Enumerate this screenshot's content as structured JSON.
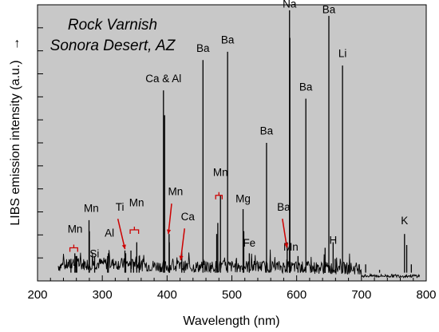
{
  "chart_data": {
    "type": "line",
    "title_lines": [
      "Rock Varnish",
      "Sonora Desert, AZ"
    ],
    "xlabel": "Wavelength (nm)",
    "ylabel": "LIBS emission intensity (a.u.)",
    "ylabel_arrow": "→",
    "xlim": [
      200,
      800
    ],
    "ylim": [
      0,
      100
    ],
    "xticks": [
      200,
      300,
      400,
      500,
      600,
      700,
      800
    ],
    "y_tick_labels": "none",
    "grid": false,
    "background": "#c8c8c8",
    "line_color": "#000000",
    "annotation_color": "#cc0000",
    "series": [
      {
        "peaks": [
          {
            "x": 394.4,
            "y": 69
          },
          {
            "x": 396.2,
            "y": 60
          },
          {
            "x": 455.4,
            "y": 80
          },
          {
            "x": 493.4,
            "y": 83
          },
          {
            "x": 553.5,
            "y": 50
          },
          {
            "x": 589.0,
            "y": 98
          },
          {
            "x": 589.6,
            "y": 88
          },
          {
            "x": 614.2,
            "y": 66
          },
          {
            "x": 649.7,
            "y": 96
          },
          {
            "x": 670.8,
            "y": 78
          },
          {
            "x": 766.5,
            "y": 17
          },
          {
            "x": 769.9,
            "y": 13
          },
          {
            "x": 279.5,
            "y": 22
          },
          {
            "x": 280.1,
            "y": 18
          },
          {
            "x": 257.6,
            "y": 10
          },
          {
            "x": 259.4,
            "y": 9
          },
          {
            "x": 260.6,
            "y": 9
          },
          {
            "x": 251.6,
            "y": 8
          },
          {
            "x": 288.2,
            "y": 9
          },
          {
            "x": 308.2,
            "y": 9
          },
          {
            "x": 309.3,
            "y": 10
          },
          {
            "x": 334.9,
            "y": 11
          },
          {
            "x": 336.1,
            "y": 10
          },
          {
            "x": 344.2,
            "y": 11
          },
          {
            "x": 348.3,
            "y": 7
          },
          {
            "x": 353.2,
            "y": 14
          },
          {
            "x": 356.9,
            "y": 9
          },
          {
            "x": 403.1,
            "y": 17
          },
          {
            "x": 403.5,
            "y": 14
          },
          {
            "x": 422.7,
            "y": 11
          },
          {
            "x": 476.6,
            "y": 17
          },
          {
            "x": 478.3,
            "y": 21
          },
          {
            "x": 482.4,
            "y": 31
          },
          {
            "x": 517.3,
            "y": 26
          },
          {
            "x": 518.4,
            "y": 18
          },
          {
            "x": 526.9,
            "y": 10
          },
          {
            "x": 585.4,
            "y": 14
          },
          {
            "x": 602.1,
            "y": 9
          },
          {
            "x": 656.3,
            "y": 14
          },
          {
            "x": 643.9,
            "y": 12
          },
          {
            "x": 659.5,
            "y": 8
          },
          {
            "x": 706.5,
            "y": 6
          },
          {
            "x": 728.0,
            "y": 4
          },
          {
            "x": 740.0,
            "y": 3
          },
          {
            "x": 777.0,
            "y": 6
          }
        ]
      }
    ],
    "annotations": [
      {
        "text": "Na",
        "x": 589,
        "y": 99
      },
      {
        "text": "Ba",
        "x": 649.7,
        "y": 97
      },
      {
        "text": "Ba",
        "x": 493.4,
        "y": 86
      },
      {
        "text": "Ba",
        "x": 455.4,
        "y": 83
      },
      {
        "text": "Li",
        "x": 670.8,
        "y": 81
      },
      {
        "text": "Ca & Al",
        "x": 394.4,
        "y": 72
      },
      {
        "text": "Ba",
        "x": 614.2,
        "y": 69
      },
      {
        "text": "Ba",
        "x": 553.5,
        "y": 53
      },
      {
        "text": "Mn",
        "x": 482.4,
        "y": 38
      },
      {
        "text": "Mg",
        "x": 517.3,
        "y": 28.5
      },
      {
        "text": "Mn",
        "x": 413,
        "y": 31
      },
      {
        "text": "Ca",
        "x": 432,
        "y": 22
      },
      {
        "text": "Fe",
        "x": 526.9,
        "y": 12.5
      },
      {
        "text": "Ba",
        "x": 580,
        "y": 25.5
      },
      {
        "text": "Mn",
        "x": 591,
        "y": 11
      },
      {
        "text": "Mn",
        "x": 353,
        "y": 27
      },
      {
        "text": "Ti",
        "x": 327,
        "y": 25.5
      },
      {
        "text": "Al",
        "x": 311,
        "y": 16
      },
      {
        "text": "Mn",
        "x": 283,
        "y": 25
      },
      {
        "text": "Si",
        "x": 288,
        "y": 8.5
      },
      {
        "text": "Mn",
        "x": 258,
        "y": 17.5
      },
      {
        "text": "H",
        "x": 656.3,
        "y": 13.5
      },
      {
        "text": "K",
        "x": 766.5,
        "y": 20.5
      }
    ]
  }
}
